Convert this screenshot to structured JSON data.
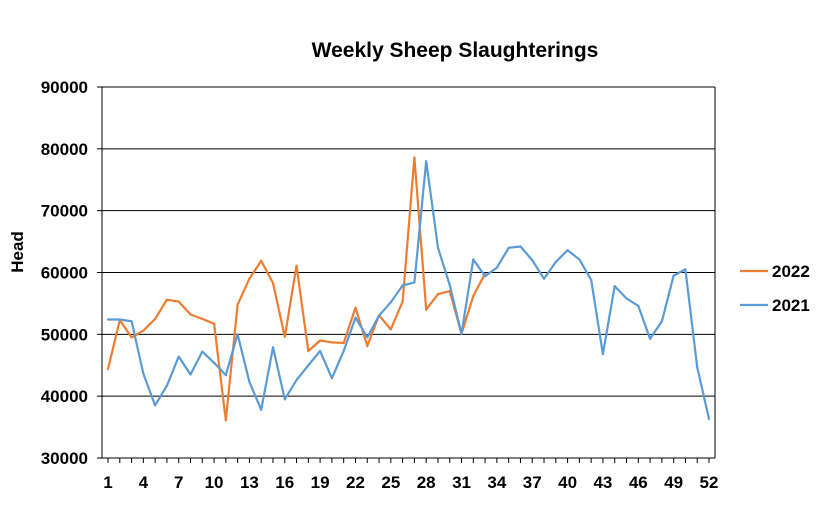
{
  "chart_data": {
    "type": "line",
    "title": "Weekly Sheep Slaughterings",
    "xlabel": "",
    "ylabel": "Head",
    "ylim": [
      30000,
      90000
    ],
    "xlim": [
      1,
      52
    ],
    "yticks": [
      "30000",
      "40000",
      "50000",
      "60000",
      "70000",
      "80000",
      "90000"
    ],
    "xticks": [
      "1",
      "4",
      "7",
      "10",
      "13",
      "16",
      "19",
      "22",
      "25",
      "28",
      "31",
      "34",
      "37",
      "40",
      "43",
      "46",
      "49",
      "52"
    ],
    "grid": "horizontal",
    "legend": "right",
    "series": [
      {
        "name": "2022",
        "color": "#ed7d31",
        "x": [
          1,
          2,
          3,
          4,
          5,
          6,
          7,
          8,
          9,
          10,
          11,
          12,
          13,
          14,
          15,
          16,
          17,
          18,
          19,
          20,
          21,
          22,
          23,
          24,
          25,
          26,
          27,
          28,
          29,
          30,
          31,
          32,
          33
        ],
        "values": [
          44400,
          52300,
          49500,
          50600,
          52500,
          55600,
          55300,
          53200,
          52500,
          51700,
          36100,
          54800,
          59000,
          61900,
          58300,
          49600,
          61100,
          47300,
          49000,
          48700,
          48600,
          54300,
          48100,
          53100,
          50800,
          55300,
          78600,
          54000,
          56500,
          57000,
          50100,
          56200,
          59800
        ]
      },
      {
        "name": "2021",
        "color": "#5b9bd5",
        "x": [
          1,
          2,
          3,
          4,
          5,
          6,
          7,
          8,
          9,
          10,
          11,
          12,
          13,
          14,
          15,
          16,
          17,
          18,
          19,
          20,
          21,
          22,
          23,
          24,
          25,
          26,
          27,
          28,
          29,
          30,
          31,
          32,
          33,
          34,
          35,
          36,
          37,
          38,
          39,
          40,
          41,
          42,
          43,
          44,
          45,
          46,
          47,
          48,
          49,
          50,
          51,
          52
        ],
        "values": [
          52400,
          52400,
          52100,
          43600,
          38500,
          41700,
          46400,
          43500,
          47200,
          45400,
          43400,
          50000,
          42300,
          37800,
          47900,
          39500,
          42600,
          45000,
          47300,
          42900,
          47300,
          52700,
          49500,
          53000,
          55200,
          57900,
          58400,
          78000,
          64000,
          58000,
          50100,
          62100,
          59400,
          60800,
          64000,
          64200,
          62000,
          59000,
          61700,
          63600,
          62100,
          58800,
          46800,
          57800,
          55800,
          54600,
          49300,
          52100,
          59500,
          60500,
          44700,
          36300
        ]
      }
    ]
  }
}
